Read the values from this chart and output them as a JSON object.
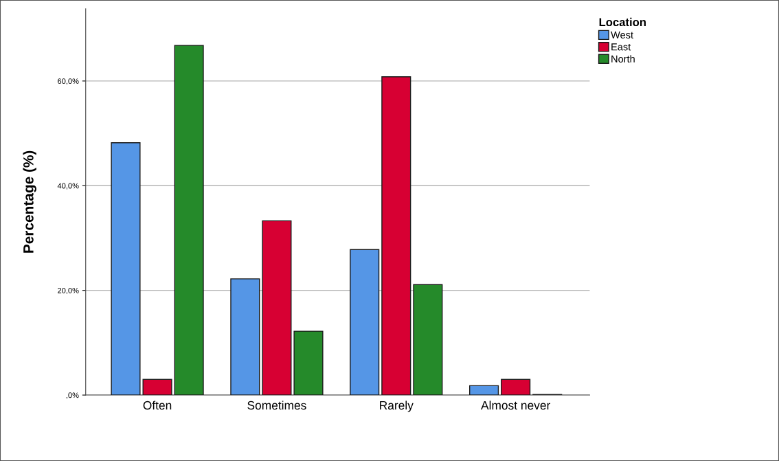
{
  "chart_data": {
    "type": "bar",
    "ylabel": "Percentage (%)",
    "legend_title": "Location",
    "categories": [
      "Often",
      "Sometimes",
      "Rarely",
      "Almost never"
    ],
    "series": [
      {
        "name": "West",
        "color": "#5596e6",
        "values": [
          48.2,
          22.2,
          27.8,
          1.8
        ]
      },
      {
        "name": "East",
        "color": "#d70033",
        "values": [
          3.0,
          33.3,
          60.8,
          3.0
        ]
      },
      {
        "name": "North",
        "color": "#258a2a",
        "values": [
          66.8,
          12.2,
          21.1,
          0.1
        ]
      }
    ],
    "ylim": [
      0,
      73.8
    ],
    "yticks": [
      {
        "value": 0,
        "label": ",0%"
      },
      {
        "value": 20,
        "label": "20,0%"
      },
      {
        "value": 40,
        "label": "40,0%"
      },
      {
        "value": 60,
        "label": "60,0%"
      }
    ],
    "grid": "y",
    "legend": "top right"
  }
}
